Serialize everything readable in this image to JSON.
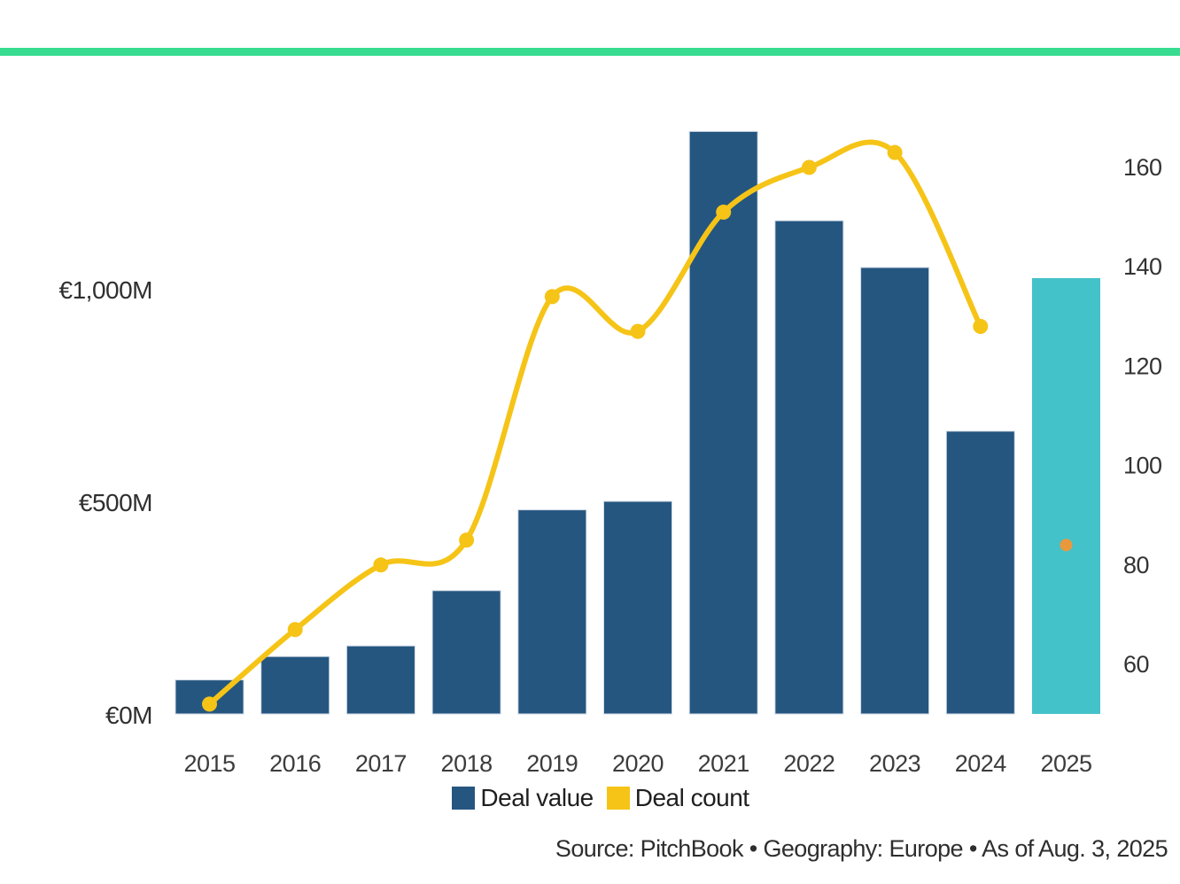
{
  "accent_bar_color": "#37dc90",
  "colors": {
    "deal_value_bar": "#255680",
    "deal_value_bar_stroke": "#cfdae5",
    "estimate_bar_2025": "#44c2c9",
    "deal_count_line": "#f5c417",
    "estimate_point_2025": "#e9983c",
    "axis_text": "#333333",
    "background": "#ffffff"
  },
  "chart_data": {
    "type": "combo-bar-line",
    "categories": [
      "2015",
      "2016",
      "2017",
      "2018",
      "2019",
      "2020",
      "2021",
      "2022",
      "2023",
      "2024",
      "2025"
    ],
    "series": [
      {
        "name": "Deal value",
        "type": "bar",
        "axis": "left",
        "unit": "EUR millions",
        "values": [
          80,
          135,
          160,
          290,
          480,
          500,
          1370,
          1160,
          1050,
          665,
          1025
        ]
      },
      {
        "name": "Deal count",
        "type": "line",
        "axis": "right",
        "values": [
          52,
          67,
          80,
          85,
          134,
          127,
          151,
          160,
          163,
          128,
          84
        ]
      }
    ],
    "highlight_last_category": true,
    "highlight_note": "2025 bar shown in teal with orange deal-count point (year-to-date estimate)",
    "left_axis": {
      "ticks": [
        {
          "label": "€0M",
          "value": 0
        },
        {
          "label": "€500M",
          "value": 500
        },
        {
          "label": "€1,000M",
          "value": 1000
        }
      ],
      "range": [
        0,
        1400
      ],
      "grid": false
    },
    "right_axis": {
      "ticks": [
        {
          "label": "60",
          "value": 60
        },
        {
          "label": "80",
          "value": 80
        },
        {
          "label": "100",
          "value": 100
        },
        {
          "label": "120",
          "value": 120
        },
        {
          "label": "140",
          "value": 140
        },
        {
          "label": "160",
          "value": 160
        }
      ],
      "range": [
        50,
        170
      ],
      "grid": false
    },
    "legend": [
      {
        "label": "Deal value",
        "swatch": "deal_value_bar"
      },
      {
        "label": "Deal count",
        "swatch": "deal_count_line"
      }
    ],
    "legend_position": "bottom-center",
    "source_note": "Source: PitchBook • Geography: Europe • As of Aug. 3, 2025"
  }
}
